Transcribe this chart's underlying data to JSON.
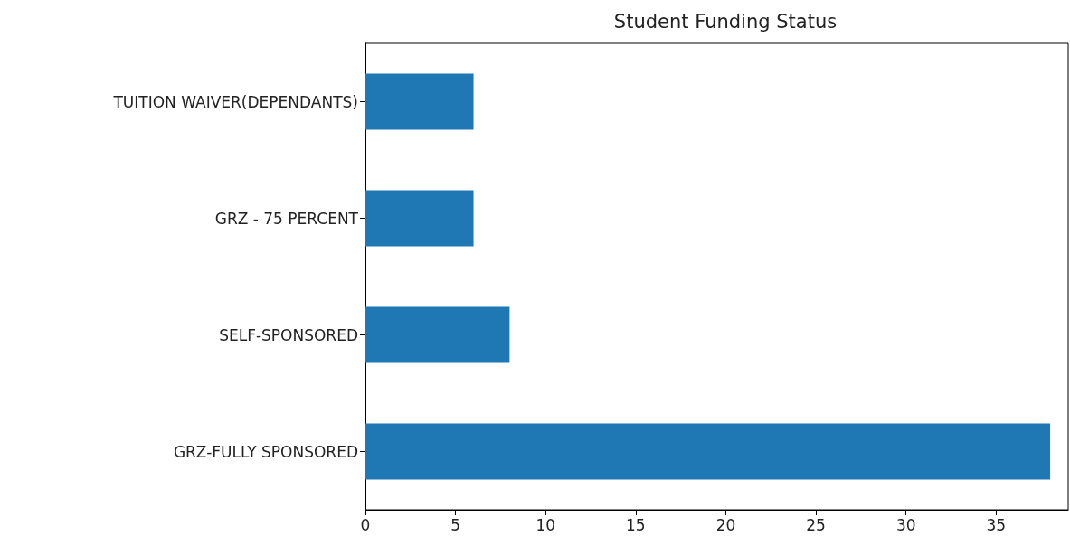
{
  "chart_data": {
    "type": "bar",
    "orientation": "horizontal",
    "title": "Student Funding Status",
    "categories": [
      "TUITION WAIVER(DEPENDANTS)",
      "GRZ - 75 PERCENT",
      "SELF-SPONSORED",
      "GRZ-FULLY SPONSORED"
    ],
    "values": [
      6,
      6,
      8,
      38
    ],
    "color": "#1f77b4",
    "xlim": [
      0,
      39
    ],
    "xticks": [
      0,
      5,
      10,
      15,
      20,
      25,
      30,
      35
    ],
    "grid": false
  }
}
